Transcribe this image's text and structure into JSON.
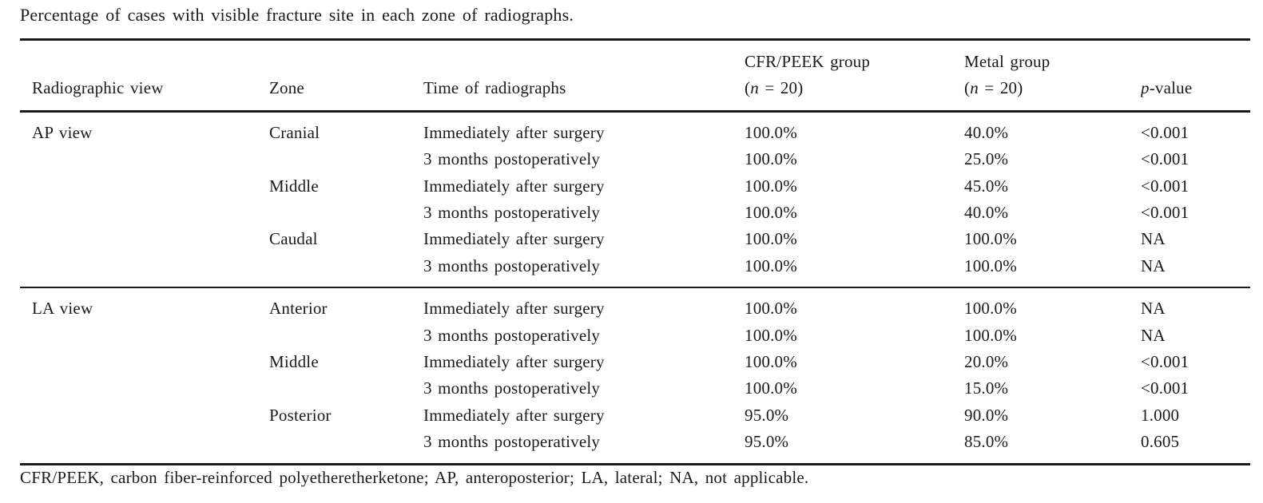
{
  "caption": "Percentage of cases with visible fracture site in each zone of radiographs.",
  "colors": {
    "text": "#1a1a1a",
    "rule": "#1a1a1a",
    "background": "#ffffff"
  },
  "table": {
    "headers": {
      "radiographic_view": "Radiographic view",
      "zone": "Zone",
      "time": "Time of radiographs",
      "cfr_peek_line1": "CFR/PEEK group",
      "metal_line1": "Metal group",
      "n_open": "(",
      "n_var": "n",
      "n_rest": " = 20)",
      "p_var": "p",
      "p_rest": "-value"
    },
    "sections": [
      {
        "rows": [
          {
            "view": "AP view",
            "zone": "Cranial",
            "time": "Immediately after surgery",
            "cfr": "100.0%",
            "metal": "40.0%",
            "p": "<0.001"
          },
          {
            "view": "",
            "zone": "",
            "time": "3 months postoperatively",
            "cfr": "100.0%",
            "metal": "25.0%",
            "p": "<0.001"
          },
          {
            "view": "",
            "zone": "Middle",
            "time": "Immediately after surgery",
            "cfr": "100.0%",
            "metal": "45.0%",
            "p": "<0.001"
          },
          {
            "view": "",
            "zone": "",
            "time": "3 months postoperatively",
            "cfr": "100.0%",
            "metal": "40.0%",
            "p": "<0.001"
          },
          {
            "view": "",
            "zone": "Caudal",
            "time": "Immediately after surgery",
            "cfr": "100.0%",
            "metal": "100.0%",
            "p": "NA"
          },
          {
            "view": "",
            "zone": "",
            "time": "3 months postoperatively",
            "cfr": "100.0%",
            "metal": "100.0%",
            "p": "NA"
          }
        ]
      },
      {
        "rows": [
          {
            "view": "LA view",
            "zone": "Anterior",
            "time": "Immediately after surgery",
            "cfr": "100.0%",
            "metal": "100.0%",
            "p": "NA"
          },
          {
            "view": "",
            "zone": "",
            "time": "3 months postoperatively",
            "cfr": "100.0%",
            "metal": "100.0%",
            "p": "NA"
          },
          {
            "view": "",
            "zone": "Middle",
            "time": "Immediately after surgery",
            "cfr": "100.0%",
            "metal": "20.0%",
            "p": "<0.001"
          },
          {
            "view": "",
            "zone": "",
            "time": "3 months postoperatively",
            "cfr": "100.0%",
            "metal": "15.0%",
            "p": "<0.001"
          },
          {
            "view": "",
            "zone": "Posterior",
            "time": "Immediately after surgery",
            "cfr": "95.0%",
            "metal": "90.0%",
            "p": "1.000"
          },
          {
            "view": "",
            "zone": "",
            "time": "3 months postoperatively",
            "cfr": "95.0%",
            "metal": "85.0%",
            "p": "0.605"
          }
        ]
      }
    ]
  },
  "footnote": "CFR/PEEK, carbon fiber-reinforced polyetheretherketone; AP, anteroposterior; LA, lateral; NA, not applicable."
}
